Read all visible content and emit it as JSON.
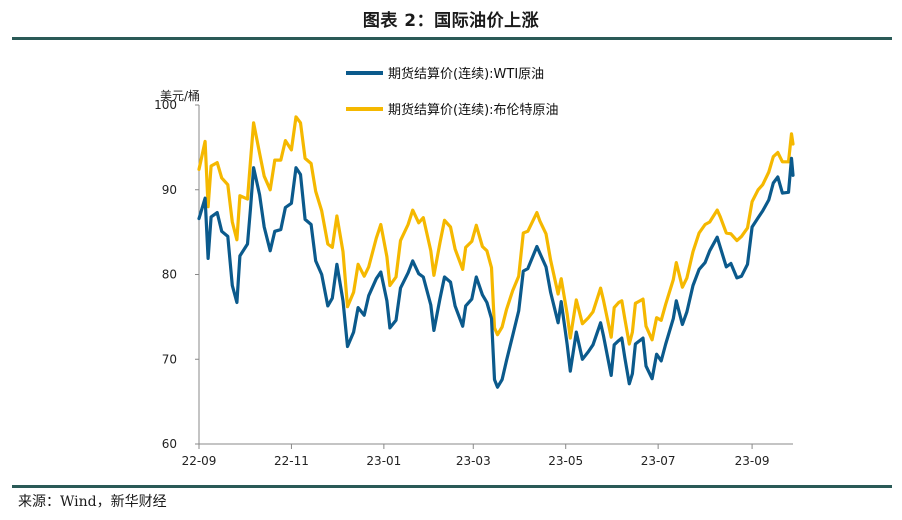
{
  "figure": {
    "title": "图表 2：国际油价上涨",
    "source": "来源：Wind，新华财经"
  },
  "chart_data": {
    "type": "line",
    "ylabel": "美元/桶",
    "xlabel": "",
    "ylim": [
      60,
      100
    ],
    "yticks": [
      60,
      70,
      80,
      90,
      100
    ],
    "xlim": [
      "2022-09-01",
      "2023-09-28"
    ],
    "xticks": [
      {
        "date": "2022-09-01",
        "label": "22-09"
      },
      {
        "date": "2022-11-01",
        "label": "22-11"
      },
      {
        "date": "2023-01-01",
        "label": "23-01"
      },
      {
        "date": "2023-03-01",
        "label": "23-03"
      },
      {
        "date": "2023-05-01",
        "label": "23-05"
      },
      {
        "date": "2023-07-01",
        "label": "23-07"
      },
      {
        "date": "2023-09-01",
        "label": "23-09"
      }
    ],
    "grid": false,
    "legend_position": "top-center",
    "series": [
      {
        "name": "期货结算价(连续):WTI原油",
        "color": "#0b5a8c",
        "points": [
          [
            "2022-09-01",
            86.6
          ],
          [
            "2022-09-05",
            89.0
          ],
          [
            "2022-09-07",
            81.9
          ],
          [
            "2022-09-09",
            86.8
          ],
          [
            "2022-09-13",
            87.3
          ],
          [
            "2022-09-16",
            85.1
          ],
          [
            "2022-09-20",
            84.5
          ],
          [
            "2022-09-23",
            78.7
          ],
          [
            "2022-09-26",
            76.7
          ],
          [
            "2022-09-28",
            82.2
          ],
          [
            "2022-10-03",
            83.6
          ],
          [
            "2022-10-05",
            87.8
          ],
          [
            "2022-10-07",
            92.6
          ],
          [
            "2022-10-11",
            89.4
          ],
          [
            "2022-10-14",
            85.6
          ],
          [
            "2022-10-18",
            82.8
          ],
          [
            "2022-10-21",
            85.1
          ],
          [
            "2022-10-25",
            85.3
          ],
          [
            "2022-10-28",
            87.9
          ],
          [
            "2022-11-01",
            88.4
          ],
          [
            "2022-11-04",
            92.6
          ],
          [
            "2022-11-07",
            91.8
          ],
          [
            "2022-11-10",
            86.5
          ],
          [
            "2022-11-14",
            85.9
          ],
          [
            "2022-11-17",
            81.6
          ],
          [
            "2022-11-21",
            80.0
          ],
          [
            "2022-11-25",
            76.3
          ],
          [
            "2022-11-28",
            77.2
          ],
          [
            "2022-12-01",
            81.2
          ],
          [
            "2022-12-05",
            76.9
          ],
          [
            "2022-12-08",
            71.5
          ],
          [
            "2022-12-12",
            73.2
          ],
          [
            "2022-12-15",
            76.1
          ],
          [
            "2022-12-19",
            75.2
          ],
          [
            "2022-12-22",
            77.5
          ],
          [
            "2022-12-27",
            79.5
          ],
          [
            "2022-12-30",
            80.3
          ],
          [
            "2023-01-03",
            76.9
          ],
          [
            "2023-01-05",
            73.7
          ],
          [
            "2023-01-09",
            74.6
          ],
          [
            "2023-01-12",
            78.4
          ],
          [
            "2023-01-17",
            80.2
          ],
          [
            "2023-01-20",
            81.6
          ],
          [
            "2023-01-24",
            80.1
          ],
          [
            "2023-01-27",
            79.7
          ],
          [
            "2023-02-01",
            76.4
          ],
          [
            "2023-02-03",
            73.4
          ],
          [
            "2023-02-07",
            77.1
          ],
          [
            "2023-02-10",
            79.7
          ],
          [
            "2023-02-14",
            79.1
          ],
          [
            "2023-02-17",
            76.3
          ],
          [
            "2023-02-22",
            73.9
          ],
          [
            "2023-02-24",
            76.3
          ],
          [
            "2023-02-28",
            77.1
          ],
          [
            "2023-03-03",
            79.7
          ],
          [
            "2023-03-07",
            77.6
          ],
          [
            "2023-03-10",
            76.7
          ],
          [
            "2023-03-13",
            74.8
          ],
          [
            "2023-03-15",
            67.6
          ],
          [
            "2023-03-17",
            66.7
          ],
          [
            "2023-03-20",
            67.6
          ],
          [
            "2023-03-23",
            69.9
          ],
          [
            "2023-03-27",
            72.8
          ],
          [
            "2023-03-31",
            75.7
          ],
          [
            "2023-04-03",
            80.4
          ],
          [
            "2023-04-06",
            80.7
          ],
          [
            "2023-04-12",
            83.3
          ],
          [
            "2023-04-14",
            82.5
          ],
          [
            "2023-04-18",
            80.9
          ],
          [
            "2023-04-21",
            77.9
          ],
          [
            "2023-04-26",
            74.3
          ],
          [
            "2023-04-28",
            76.8
          ],
          [
            "2023-05-02",
            71.7
          ],
          [
            "2023-05-04",
            68.6
          ],
          [
            "2023-05-08",
            73.2
          ],
          [
            "2023-05-12",
            70.0
          ],
          [
            "2023-05-16",
            70.9
          ],
          [
            "2023-05-19",
            71.7
          ],
          [
            "2023-05-24",
            74.3
          ],
          [
            "2023-05-26",
            72.7
          ],
          [
            "2023-05-31",
            68.1
          ],
          [
            "2023-06-02",
            71.7
          ],
          [
            "2023-06-05",
            72.2
          ],
          [
            "2023-06-07",
            72.5
          ],
          [
            "2023-06-09",
            70.2
          ],
          [
            "2023-06-12",
            67.1
          ],
          [
            "2023-06-14",
            68.3
          ],
          [
            "2023-06-16",
            71.8
          ],
          [
            "2023-06-21",
            72.5
          ],
          [
            "2023-06-23",
            69.2
          ],
          [
            "2023-06-27",
            67.7
          ],
          [
            "2023-06-30",
            70.6
          ],
          [
            "2023-07-03",
            69.8
          ],
          [
            "2023-07-06",
            71.8
          ],
          [
            "2023-07-11",
            74.8
          ],
          [
            "2023-07-13",
            76.9
          ],
          [
            "2023-07-17",
            74.1
          ],
          [
            "2023-07-20",
            75.6
          ],
          [
            "2023-07-24",
            78.7
          ],
          [
            "2023-07-28",
            80.6
          ],
          [
            "2023-08-01",
            81.4
          ],
          [
            "2023-08-04",
            82.8
          ],
          [
            "2023-08-09",
            84.4
          ],
          [
            "2023-08-11",
            83.2
          ],
          [
            "2023-08-15",
            80.9
          ],
          [
            "2023-08-18",
            81.3
          ],
          [
            "2023-08-22",
            79.6
          ],
          [
            "2023-08-25",
            79.8
          ],
          [
            "2023-08-29",
            81.2
          ],
          [
            "2023-09-01",
            85.6
          ],
          [
            "2023-09-05",
            86.7
          ],
          [
            "2023-09-08",
            87.5
          ],
          [
            "2023-09-12",
            88.8
          ],
          [
            "2023-09-15",
            90.8
          ],
          [
            "2023-09-18",
            91.5
          ],
          [
            "2023-09-21",
            89.6
          ],
          [
            "2023-09-25",
            89.7
          ],
          [
            "2023-09-27",
            93.7
          ],
          [
            "2023-09-28",
            91.7
          ]
        ]
      },
      {
        "name": "期货结算价(连续):布伦特原油",
        "color": "#f5b800",
        "points": [
          [
            "2022-09-01",
            92.4
          ],
          [
            "2022-09-05",
            95.7
          ],
          [
            "2022-09-07",
            88.0
          ],
          [
            "2022-09-09",
            92.8
          ],
          [
            "2022-09-13",
            93.2
          ],
          [
            "2022-09-16",
            91.4
          ],
          [
            "2022-09-20",
            90.6
          ],
          [
            "2022-09-23",
            86.2
          ],
          [
            "2022-09-26",
            84.1
          ],
          [
            "2022-09-28",
            89.3
          ],
          [
            "2022-10-03",
            88.9
          ],
          [
            "2022-10-05",
            93.4
          ],
          [
            "2022-10-07",
            97.9
          ],
          [
            "2022-10-11",
            94.3
          ],
          [
            "2022-10-14",
            91.6
          ],
          [
            "2022-10-18",
            90.0
          ],
          [
            "2022-10-21",
            93.5
          ],
          [
            "2022-10-25",
            93.5
          ],
          [
            "2022-10-28",
            95.8
          ],
          [
            "2022-11-01",
            94.7
          ],
          [
            "2022-11-04",
            98.6
          ],
          [
            "2022-11-07",
            97.9
          ],
          [
            "2022-11-10",
            93.7
          ],
          [
            "2022-11-14",
            93.1
          ],
          [
            "2022-11-17",
            89.8
          ],
          [
            "2022-11-21",
            87.5
          ],
          [
            "2022-11-25",
            83.6
          ],
          [
            "2022-11-28",
            83.2
          ],
          [
            "2022-12-01",
            86.9
          ],
          [
            "2022-12-05",
            82.7
          ],
          [
            "2022-12-08",
            76.2
          ],
          [
            "2022-12-12",
            77.9
          ],
          [
            "2022-12-15",
            81.2
          ],
          [
            "2022-12-19",
            79.8
          ],
          [
            "2022-12-22",
            80.9
          ],
          [
            "2022-12-27",
            84.3
          ],
          [
            "2022-12-30",
            85.9
          ],
          [
            "2023-01-03",
            82.1
          ],
          [
            "2023-01-05",
            78.7
          ],
          [
            "2023-01-09",
            79.7
          ],
          [
            "2023-01-12",
            84.0
          ],
          [
            "2023-01-17",
            85.9
          ],
          [
            "2023-01-20",
            87.6
          ],
          [
            "2023-01-24",
            86.1
          ],
          [
            "2023-01-27",
            86.7
          ],
          [
            "2023-02-01",
            82.8
          ],
          [
            "2023-02-03",
            79.9
          ],
          [
            "2023-02-07",
            83.7
          ],
          [
            "2023-02-10",
            86.4
          ],
          [
            "2023-02-14",
            85.6
          ],
          [
            "2023-02-17",
            83.0
          ],
          [
            "2023-02-22",
            80.6
          ],
          [
            "2023-02-24",
            83.2
          ],
          [
            "2023-02-28",
            83.9
          ],
          [
            "2023-03-03",
            85.8
          ],
          [
            "2023-03-07",
            83.3
          ],
          [
            "2023-03-10",
            82.8
          ],
          [
            "2023-03-13",
            80.8
          ],
          [
            "2023-03-15",
            73.7
          ],
          [
            "2023-03-17",
            72.9
          ],
          [
            "2023-03-20",
            73.8
          ],
          [
            "2023-03-23",
            75.9
          ],
          [
            "2023-03-27",
            78.1
          ],
          [
            "2023-03-31",
            79.8
          ],
          [
            "2023-04-03",
            84.9
          ],
          [
            "2023-04-06",
            85.1
          ],
          [
            "2023-04-12",
            87.3
          ],
          [
            "2023-04-14",
            86.3
          ],
          [
            "2023-04-18",
            84.8
          ],
          [
            "2023-04-21",
            81.7
          ],
          [
            "2023-04-26",
            77.7
          ],
          [
            "2023-04-28",
            79.5
          ],
          [
            "2023-05-02",
            75.3
          ],
          [
            "2023-05-04",
            72.5
          ],
          [
            "2023-05-08",
            77.0
          ],
          [
            "2023-05-12",
            74.2
          ],
          [
            "2023-05-16",
            74.9
          ],
          [
            "2023-05-19",
            75.6
          ],
          [
            "2023-05-24",
            78.4
          ],
          [
            "2023-05-26",
            76.9
          ],
          [
            "2023-05-31",
            72.6
          ],
          [
            "2023-06-02",
            76.1
          ],
          [
            "2023-06-05",
            76.7
          ],
          [
            "2023-06-07",
            76.9
          ],
          [
            "2023-06-09",
            74.8
          ],
          [
            "2023-06-12",
            71.8
          ],
          [
            "2023-06-14",
            73.2
          ],
          [
            "2023-06-16",
            76.6
          ],
          [
            "2023-06-21",
            77.1
          ],
          [
            "2023-06-23",
            73.9
          ],
          [
            "2023-06-27",
            72.3
          ],
          [
            "2023-06-30",
            74.9
          ],
          [
            "2023-07-03",
            74.6
          ],
          [
            "2023-07-06",
            76.5
          ],
          [
            "2023-07-11",
            79.4
          ],
          [
            "2023-07-13",
            81.4
          ],
          [
            "2023-07-17",
            78.5
          ],
          [
            "2023-07-20",
            79.6
          ],
          [
            "2023-07-24",
            82.7
          ],
          [
            "2023-07-28",
            84.9
          ],
          [
            "2023-08-01",
            85.9
          ],
          [
            "2023-08-04",
            86.2
          ],
          [
            "2023-08-09",
            87.6
          ],
          [
            "2023-08-11",
            86.8
          ],
          [
            "2023-08-15",
            84.9
          ],
          [
            "2023-08-18",
            84.8
          ],
          [
            "2023-08-22",
            84.0
          ],
          [
            "2023-08-25",
            84.5
          ],
          [
            "2023-08-29",
            85.5
          ],
          [
            "2023-09-01",
            88.6
          ],
          [
            "2023-09-05",
            90.0
          ],
          [
            "2023-09-08",
            90.6
          ],
          [
            "2023-09-12",
            92.1
          ],
          [
            "2023-09-15",
            93.9
          ],
          [
            "2023-09-18",
            94.4
          ],
          [
            "2023-09-21",
            93.3
          ],
          [
            "2023-09-25",
            93.3
          ],
          [
            "2023-09-27",
            96.6
          ],
          [
            "2023-09-28",
            95.4
          ]
        ]
      }
    ]
  }
}
